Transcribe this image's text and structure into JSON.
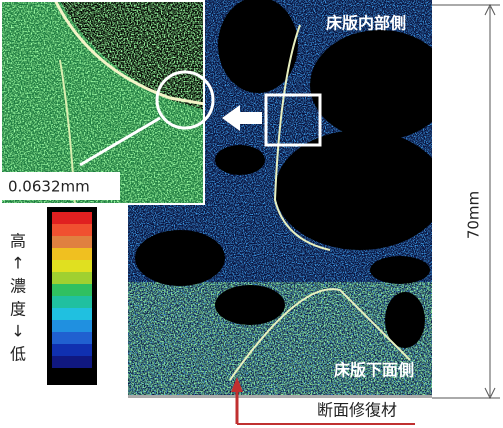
{
  "labels": {
    "top": "床版内部側",
    "bottom": "床版下面側",
    "scale": "0.0632mm",
    "dimension": "70mm",
    "material": "断面修復材"
  },
  "legend": {
    "high": "高",
    "up_arrow": "↑",
    "conc1": "濃",
    "conc2": "度",
    "down_arrow": "↓",
    "low": "低"
  }
}
